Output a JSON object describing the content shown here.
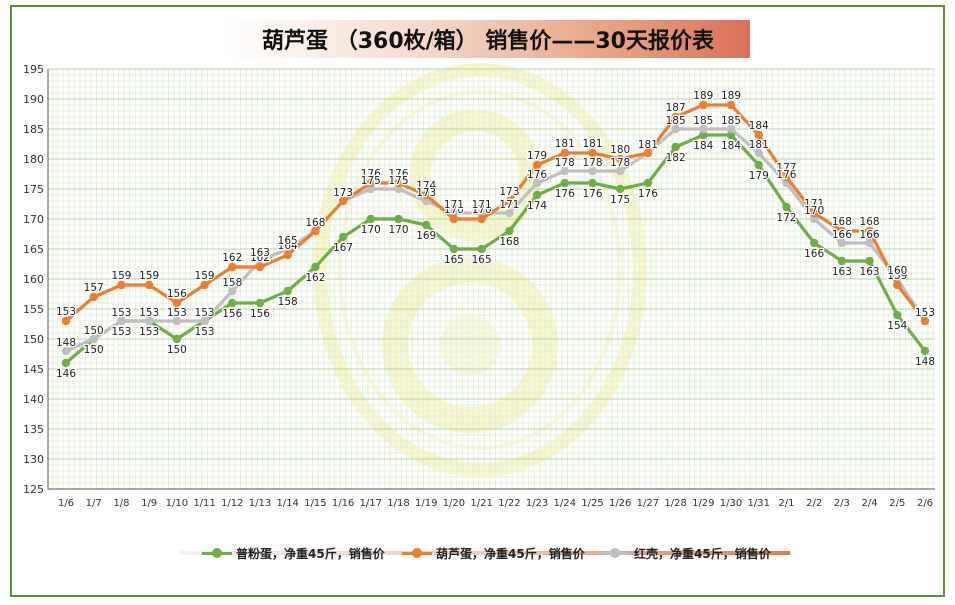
{
  "title": "葫芦蛋 （360枚/箱） 销售价——30天报价表",
  "chart_data": {
    "type": "line",
    "title": "葫芦蛋 （360枚/箱） 销售价——30天报价表",
    "xlabel": "",
    "ylabel": "",
    "ylim": [
      125,
      195
    ],
    "ytick_step": 5,
    "grid": true,
    "legend_position": "bottom",
    "categories": [
      "1/6",
      "1/7",
      "1/8",
      "1/9",
      "1/10",
      "1/11",
      "1/12",
      "1/13",
      "1/14",
      "1/15",
      "1/16",
      "1/17",
      "1/18",
      "1/19",
      "1/20",
      "1/21",
      "1/22",
      "1/23",
      "1/24",
      "1/25",
      "1/26",
      "1/27",
      "1/28",
      "1/29",
      "1/30",
      "1/31",
      "2/1",
      "2/2",
      "2/3",
      "2/4",
      "2/5",
      "2/6"
    ],
    "series": [
      {
        "name": "普粉蛋，净重45斤，销售价",
        "color": "#70ad47",
        "values": [
          146,
          150,
          153,
          153,
          150,
          153,
          156,
          156,
          158,
          162,
          167,
          170,
          170,
          169,
          165,
          165,
          168,
          174,
          176,
          176,
          175,
          176,
          182,
          184,
          184,
          179,
          172,
          166,
          163,
          163,
          154,
          148
        ]
      },
      {
        "name": "葫芦蛋，净重45斤，销售价",
        "color": "#ed7d31",
        "values": [
          153,
          157,
          159,
          159,
          156,
          159,
          162,
          162,
          164,
          168,
          173,
          176,
          176,
          174,
          170,
          170,
          173,
          179,
          181,
          181,
          180,
          181,
          187,
          189,
          189,
          184,
          177,
          171,
          168,
          168,
          159,
          153
        ]
      },
      {
        "name": "红壳，净重45斤，销售价",
        "color": "#bfbfbf",
        "values": [
          148,
          150,
          153,
          153,
          153,
          153,
          158,
          163,
          165,
          168,
          173,
          175,
          175,
          173,
          171,
          171,
          171,
          176,
          178,
          178,
          178,
          181,
          185,
          185,
          185,
          181,
          176,
          170,
          166,
          166,
          160,
          153
        ]
      }
    ]
  }
}
